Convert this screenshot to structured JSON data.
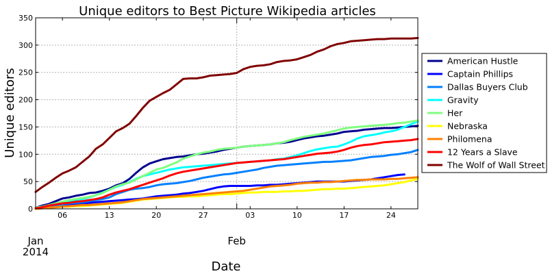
{
  "chart_data": {
    "type": "line",
    "title": "Unique editors to Best Picture Wikipedia articles",
    "xlabel": "Date",
    "ylabel": "Unique editors",
    "x_start_label": "2014-01-02",
    "x": [
      "2014-01-02",
      "2014-01-03",
      "2014-01-04",
      "2014-01-05",
      "2014-01-06",
      "2014-01-07",
      "2014-01-08",
      "2014-01-09",
      "2014-01-10",
      "2014-01-11",
      "2014-01-12",
      "2014-01-13",
      "2014-01-14",
      "2014-01-15",
      "2014-01-16",
      "2014-01-17",
      "2014-01-18",
      "2014-01-19",
      "2014-01-20",
      "2014-01-21",
      "2014-01-22",
      "2014-01-23",
      "2014-01-24",
      "2014-01-25",
      "2014-01-26",
      "2014-01-27",
      "2014-01-28",
      "2014-01-29",
      "2014-01-30",
      "2014-01-31",
      "2014-02-01",
      "2014-02-02",
      "2014-02-03",
      "2014-02-04",
      "2014-02-05",
      "2014-02-06",
      "2014-02-07",
      "2014-02-08",
      "2014-02-09",
      "2014-02-10",
      "2014-02-11",
      "2014-02-12",
      "2014-02-13",
      "2014-02-14",
      "2014-02-15",
      "2014-02-16",
      "2014-02-17",
      "2014-02-18",
      "2014-02-19",
      "2014-02-20",
      "2014-02-21",
      "2014-02-22",
      "2014-02-23",
      "2014-02-24",
      "2014-02-25",
      "2014-02-26",
      "2014-02-27",
      "2014-02-28"
    ],
    "ylim": [
      0,
      350
    ],
    "yticks": [
      0,
      50,
      100,
      150,
      200,
      250,
      300,
      350
    ],
    "xlim": [
      "2014-01-02",
      "2014-02-28"
    ],
    "xticks": [
      {
        "date": "2014-01-06",
        "label": "06"
      },
      {
        "date": "2014-01-13",
        "label": "13"
      },
      {
        "date": "2014-01-20",
        "label": "20"
      },
      {
        "date": "2014-01-27",
        "label": "27"
      },
      {
        "date": "2014-02-03",
        "label": "03"
      },
      {
        "date": "2014-02-10",
        "label": "10"
      },
      {
        "date": "2014-02-17",
        "label": "17"
      },
      {
        "date": "2014-02-24",
        "label": "24"
      }
    ],
    "month_labels": [
      {
        "date": "2014-01-02",
        "label": "Jan",
        "year": "2014"
      },
      {
        "date": "2014-02-01",
        "label": "Feb",
        "year": ""
      }
    ],
    "grid": true,
    "legend_position": "right",
    "series": [
      {
        "name": "American Hustle",
        "color": "#00008f",
        "values": [
          2,
          6,
          9,
          14,
          19,
          21,
          24,
          26,
          29,
          30,
          33,
          37,
          43,
          47,
          55,
          66,
          76,
          83,
          87,
          91,
          93,
          95,
          96,
          98,
          100,
          101,
          103,
          105,
          108,
          110,
          112,
          114,
          115,
          116,
          117,
          118,
          120,
          121,
          123,
          126,
          129,
          131,
          133,
          134,
          136,
          138,
          141,
          142,
          143,
          145,
          146,
          147,
          148,
          148,
          149,
          150,
          151,
          152
        ]
      },
      {
        "name": "Captain Phillips",
        "color": "#0000ff",
        "values": [
          1,
          2,
          3,
          5,
          7,
          8,
          9,
          10,
          11,
          12,
          13,
          14,
          15,
          16,
          17,
          18,
          19,
          21,
          23,
          24,
          25,
          26,
          28,
          29,
          31,
          33,
          36,
          39,
          41,
          42,
          42,
          42,
          42,
          43,
          43,
          44,
          44,
          45,
          46,
          47,
          48,
          49,
          50,
          50,
          50,
          50,
          50,
          51,
          52,
          53,
          54,
          56,
          58,
          60,
          62,
          63,
          null,
          null
        ]
      },
      {
        "name": "Dallas Buyers Club",
        "color": "#0080ff",
        "values": [
          1,
          2,
          4,
          6,
          8,
          10,
          11,
          12,
          14,
          16,
          18,
          21,
          27,
          31,
          35,
          37,
          38,
          40,
          43,
          45,
          46,
          47,
          49,
          51,
          54,
          57,
          59,
          61,
          63,
          64,
          66,
          68,
          70,
          72,
          75,
          77,
          79,
          80,
          81,
          82,
          83,
          84,
          85,
          86,
          86,
          87,
          88,
          89,
          91,
          93,
          95,
          96,
          97,
          99,
          100,
          102,
          104,
          108
        ]
      },
      {
        "name": "Gravity",
        "color": "#00ffff",
        "values": [
          2,
          4,
          6,
          9,
          11,
          14,
          16,
          18,
          21,
          25,
          30,
          35,
          40,
          44,
          49,
          55,
          60,
          63,
          66,
          69,
          72,
          74,
          76,
          77,
          78,
          79,
          80,
          81,
          82,
          83,
          84,
          85,
          86,
          87,
          88,
          89,
          91,
          92,
          95,
          98,
          102,
          106,
          109,
          111,
          113,
          114,
          118,
          123,
          129,
          133,
          135,
          137,
          140,
          142,
          145,
          150,
          155,
          160
        ]
      },
      {
        "name": "Her",
        "color": "#80ff80",
        "values": [
          2,
          4,
          7,
          10,
          13,
          16,
          18,
          20,
          22,
          25,
          29,
          35,
          41,
          45,
          48,
          54,
          60,
          66,
          72,
          75,
          80,
          85,
          92,
          96,
          100,
          103,
          105,
          108,
          110,
          111,
          112,
          114,
          115,
          116,
          117,
          118,
          120,
          122,
          126,
          129,
          132,
          134,
          136,
          138,
          141,
          144,
          147,
          149,
          150,
          151,
          152,
          153,
          154,
          155,
          157,
          158,
          160,
          162
        ]
      },
      {
        "name": "Nebraska",
        "color": "#ffff00",
        "values": [
          0,
          1,
          2,
          3,
          4,
          4,
          5,
          5,
          6,
          7,
          8,
          9,
          10,
          11,
          13,
          15,
          17,
          18,
          19,
          20,
          21,
          22,
          22,
          23,
          23,
          24,
          25,
          26,
          27,
          27,
          28,
          29,
          30,
          30,
          31,
          31,
          31,
          32,
          32,
          33,
          33,
          34,
          35,
          36,
          36,
          37,
          37,
          38,
          39,
          40,
          41,
          42,
          43,
          45,
          47,
          49,
          52,
          55
        ]
      },
      {
        "name": "Philomena",
        "color": "#ff8000",
        "values": [
          0,
          1,
          2,
          3,
          4,
          5,
          6,
          7,
          7,
          8,
          9,
          10,
          11,
          12,
          14,
          16,
          18,
          19,
          20,
          21,
          22,
          23,
          24,
          25,
          26,
          27,
          28,
          29,
          30,
          31,
          32,
          33,
          35,
          37,
          39,
          41,
          42,
          43,
          44,
          46,
          47,
          48,
          48,
          49,
          49,
          50,
          51,
          52,
          53,
          53,
          54,
          54,
          54,
          55,
          55,
          56,
          57,
          58
        ]
      },
      {
        "name": "12 Years a Slave",
        "color": "#ff0000",
        "values": [
          1,
          3,
          6,
          8,
          10,
          11,
          13,
          14,
          16,
          18,
          21,
          26,
          30,
          33,
          36,
          40,
          44,
          48,
          52,
          56,
          61,
          65,
          68,
          70,
          72,
          74,
          76,
          78,
          80,
          82,
          84,
          85,
          86,
          87,
          88,
          89,
          90,
          91,
          93,
          95,
          97,
          99,
          101,
          102,
          103,
          105,
          108,
          112,
          115,
          117,
          118,
          120,
          122,
          123,
          124,
          125,
          126,
          128
        ]
      },
      {
        "name": "The Wolf of Wall Street",
        "color": "#800000",
        "values": [
          31,
          40,
          48,
          57,
          65,
          70,
          76,
          86,
          96,
          110,
          118,
          130,
          142,
          148,
          156,
          170,
          185,
          198,
          205,
          212,
          218,
          228,
          238,
          239,
          239,
          241,
          244,
          245,
          246,
          247,
          249,
          256,
          260,
          262,
          263,
          265,
          269,
          271,
          272,
          274,
          278,
          282,
          288,
          292,
          298,
          302,
          304,
          307,
          308,
          309,
          310,
          311,
          311,
          312,
          312,
          312,
          312,
          313
        ]
      }
    ]
  }
}
